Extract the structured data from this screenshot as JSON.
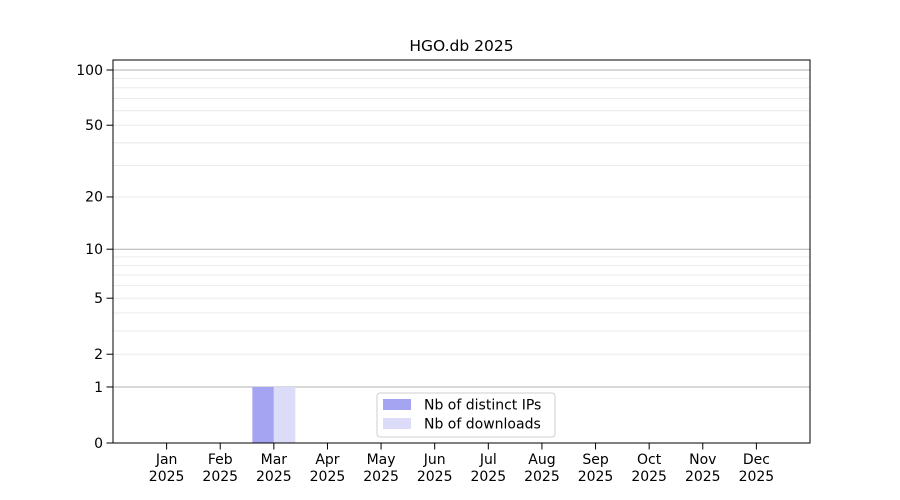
{
  "chart_data": {
    "type": "bar",
    "title": "HGO.db 2025",
    "categories": [
      "Jan",
      "Feb",
      "Mar",
      "Apr",
      "May",
      "Jun",
      "Jul",
      "Aug",
      "Sep",
      "Oct",
      "Nov",
      "Dec"
    ],
    "year_label": "2025",
    "series": [
      {
        "name": "Nb of distinct IPs",
        "color": "#a4a4f2",
        "values": [
          0,
          0,
          1,
          0,
          0,
          0,
          0,
          0,
          0,
          0,
          0,
          0
        ]
      },
      {
        "name": "Nb of downloads",
        "color": "#dcdcf8",
        "values": [
          0,
          0,
          1,
          0,
          0,
          0,
          0,
          0,
          0,
          0,
          0,
          0
        ]
      }
    ],
    "yscale": "log1p",
    "ylim": [
      0,
      114
    ],
    "ytick_values": [
      0,
      1,
      2,
      5,
      10,
      20,
      50,
      100
    ],
    "major_grid_values": [
      1,
      10,
      100
    ],
    "minor_grid_values": [
      2,
      3,
      4,
      5,
      6,
      7,
      8,
      9,
      20,
      30,
      40,
      50,
      60,
      70,
      80,
      90
    ],
    "grid": true,
    "legend_position": "lower-center",
    "colors": {
      "major_grid": "#b1b1b1",
      "minor_grid": "#e8e8e8",
      "spine": "#000000",
      "legend_border": "#cfcfcf",
      "legend_background": "#ffffff"
    }
  }
}
